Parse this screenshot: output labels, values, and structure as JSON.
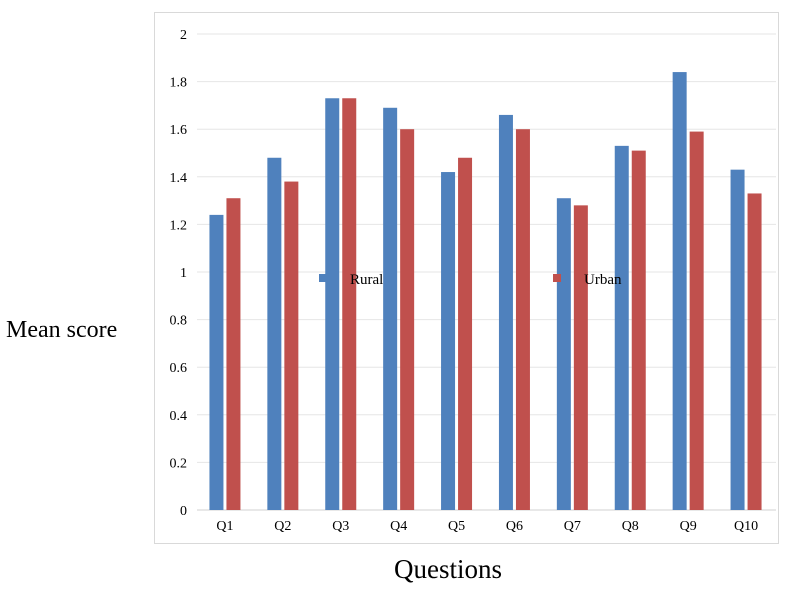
{
  "chart_data": {
    "type": "bar",
    "xlabel": "Questions",
    "ylabel": "Mean score",
    "categories": [
      "Q1",
      "Q2",
      "Q3",
      "Q4",
      "Q5",
      "Q6",
      "Q7",
      "Q8",
      "Q9",
      "Q10"
    ],
    "series": [
      {
        "name": "Rural",
        "color": "#4f81bd",
        "values": [
          1.24,
          1.48,
          1.73,
          1.69,
          1.42,
          1.66,
          1.31,
          1.53,
          1.84,
          1.43
        ]
      },
      {
        "name": "Urban",
        "color": "#c0504d",
        "values": [
          1.31,
          1.38,
          1.73,
          1.6,
          1.48,
          1.6,
          1.28,
          1.51,
          1.59,
          1.33
        ]
      }
    ],
    "ylim": [
      0,
      2
    ],
    "yticks": [
      "0",
      "0.2",
      "0.4",
      "0.6",
      "0.8",
      "1",
      "1.2",
      "1.4",
      "1.6",
      "1.8",
      "2"
    ],
    "grid": true,
    "legend_position": "middle, inside plot"
  }
}
